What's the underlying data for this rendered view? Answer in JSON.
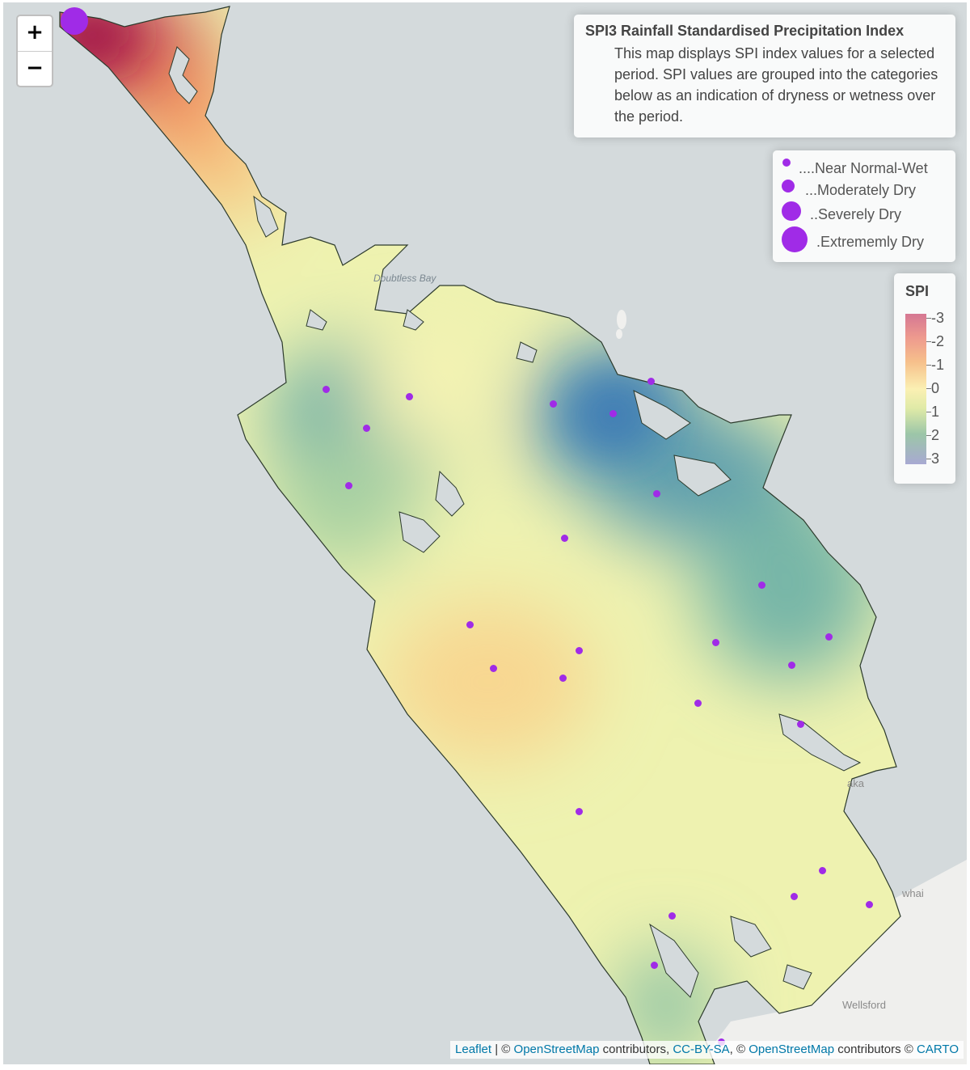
{
  "map": {
    "zoom_in": "+",
    "zoom_out": "−",
    "info_title": "SPI3 Rainfall Standardised Precipitation Index",
    "info_text": "This map displays SPI index values for a selected period. SPI values are grouped into the categories below as an indication of dryness or wetness over the period.",
    "size_legend": [
      {
        "label": "....Near Normal-Wet"
      },
      {
        "label": "...Moderately Dry"
      },
      {
        "label": "..Severely Dry"
      },
      {
        "label": ".Extrememly Dry"
      }
    ],
    "color_legend": {
      "title": "SPI",
      "ticks": [
        "-3",
        "-2",
        "-1",
        "0",
        "1",
        "2",
        "3"
      ]
    },
    "place_labels": {
      "doubtless_bay": "Doubtless Bay",
      "wellsford": "Wellsford",
      "aka": "aka",
      "whai": "whai"
    },
    "attribution": {
      "leaflet": "Leaflet",
      "sep1": " | © ",
      "osm1": "OpenStreetMap",
      "contrib1": " contributors, ",
      "ccbysa": "CC-BY-SA",
      "sep2": ", © ",
      "osm2": "OpenStreetMap",
      "contrib2": " contributors © ",
      "carto": "CARTO"
    },
    "colors": {
      "station_point": "#a02be7",
      "water": "#d4dadc",
      "land_outside": "#f0f0ee"
    }
  }
}
